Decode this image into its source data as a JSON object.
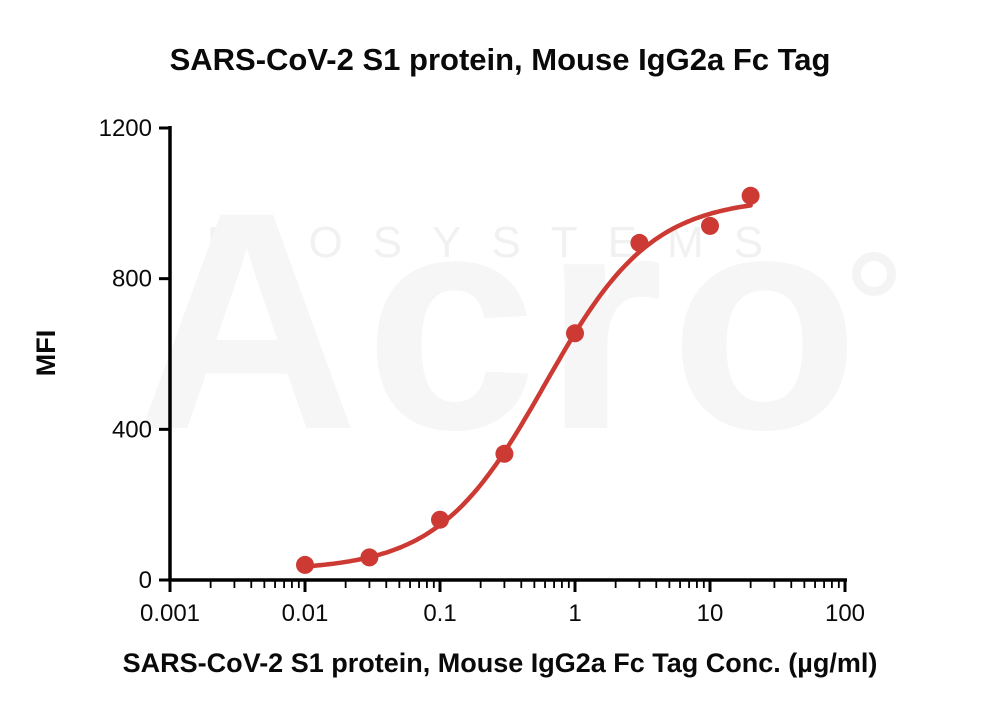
{
  "watermark": {
    "brand": "Acro",
    "sub": "BIOSYSTEMS"
  },
  "chart_data": {
    "type": "scatter",
    "title": "SARS-CoV-2 S1 protein, Mouse IgG2a Fc Tag",
    "xlabel": "SARS-CoV-2 S1 protein, Mouse IgG2a Fc Tag Conc. (µg/ml)",
    "ylabel": "MFI",
    "x_scale": "log10",
    "xlim": [
      0.001,
      100
    ],
    "ylim": [
      0,
      1200
    ],
    "x_ticks": [
      0.001,
      0.01,
      0.1,
      1,
      10,
      100
    ],
    "x_tick_labels": [
      "0.001",
      "0.01",
      "0.1",
      "1",
      "10",
      "100"
    ],
    "y_ticks": [
      0,
      400,
      800,
      1200
    ],
    "y_tick_labels": [
      "0",
      "400",
      "800",
      "1200"
    ],
    "grid": false,
    "legend": "none",
    "points": [
      {
        "x": 0.01,
        "y": 40
      },
      {
        "x": 0.03,
        "y": 60
      },
      {
        "x": 0.1,
        "y": 160
      },
      {
        "x": 0.3,
        "y": 335
      },
      {
        "x": 1,
        "y": 655
      },
      {
        "x": 3,
        "y": 895
      },
      {
        "x": 10,
        "y": 940
      },
      {
        "x": 20,
        "y": 1020
      }
    ],
    "fit": {
      "model": "4PL",
      "bottom": 25,
      "top": 1015,
      "ec50": 0.6,
      "hill": 1.1,
      "x_start": 0.01,
      "x_end": 20
    },
    "marker_color": "#cc3a33",
    "line_color": "#cc3a33",
    "axis_color": "#000000",
    "tick_label_color": "#0a0a0a"
  }
}
